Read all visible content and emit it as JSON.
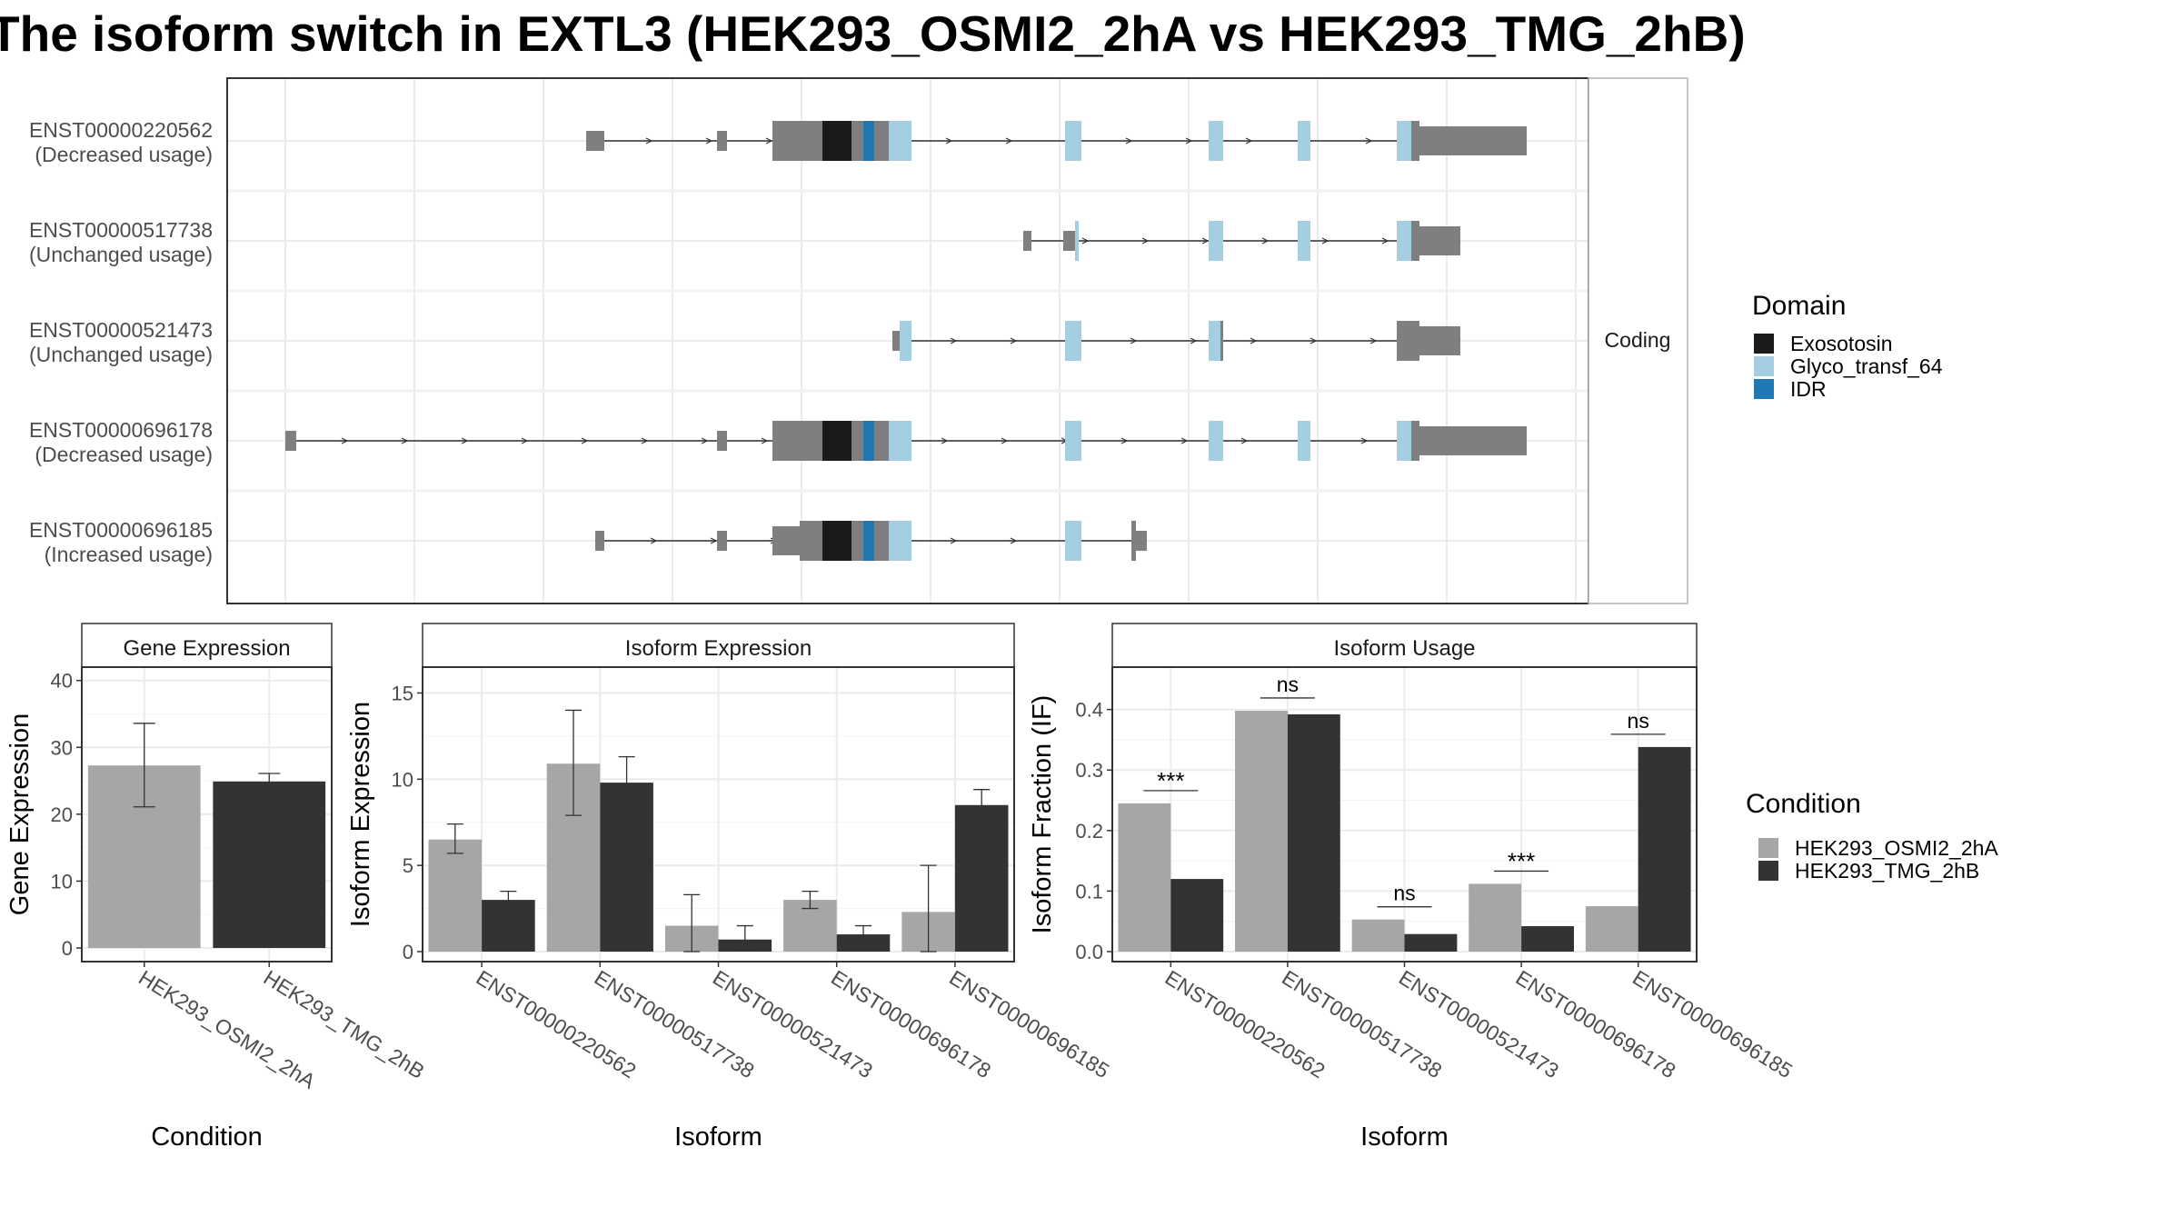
{
  "title": "The isoform switch in EXTL3 (HEK293_OSMI2_2hA vs HEK293_TMG_2hB)",
  "colors": {
    "exosotosin": "#1a1a1a",
    "glyco": "#a6cee3",
    "idr": "#1f78b4",
    "noncoding_gray": "#7f7f7f",
    "cond_a": "#a6a6a6",
    "cond_b": "#333333",
    "grid": "#ebebeb",
    "strip_bg": "#ffffff"
  },
  "structure": {
    "facet_label": "Coding",
    "isoforms": [
      {
        "id": "ENST00000220562",
        "usage": "(Decreased usage)"
      },
      {
        "id": "ENST00000517738",
        "usage": "(Unchanged usage)"
      },
      {
        "id": "ENST00000521473",
        "usage": "(Unchanged usage)"
      },
      {
        "id": "ENST00000696178",
        "usage": "(Decreased usage)"
      },
      {
        "id": "ENST00000696185",
        "usage": "(Increased usage)"
      }
    ],
    "domain_legend_title": "Domain",
    "domains": [
      {
        "name": "Exosotosin",
        "color": "#1a1a1a"
      },
      {
        "name": "Glyco_transf_64",
        "color": "#a6cee3"
      },
      {
        "name": "IDR",
        "color": "#1f78b4"
      }
    ]
  },
  "condition_legend": {
    "title": "Condition",
    "items": [
      {
        "name": "HEK293_OSMI2_2hA",
        "color": "#a6a6a6"
      },
      {
        "name": "HEK293_TMG_2hB",
        "color": "#333333"
      }
    ]
  },
  "chart_data": [
    {
      "type": "bar",
      "title": "Gene Expression",
      "xlabel": "Condition",
      "ylabel": "Gene Expression",
      "categories": [
        "HEK293_OSMI2_2hA",
        "HEK293_TMG_2hB"
      ],
      "values": [
        27.3,
        24.9
      ],
      "err_low": [
        21.1,
        23.5
      ],
      "err_high": [
        33.6,
        26.1
      ],
      "ylim": [
        0,
        42
      ],
      "yticks": [
        0,
        10,
        20,
        30,
        40
      ]
    },
    {
      "type": "bar",
      "title": "Isoform Expression",
      "xlabel": "Isoform",
      "ylabel": "Isoform Expression",
      "categories": [
        "ENST00000220562",
        "ENST00000517738",
        "ENST00000521473",
        "ENST00000696178",
        "ENST00000696185"
      ],
      "series": [
        {
          "name": "HEK293_OSMI2_2hA",
          "values": [
            6.5,
            10.9,
            1.5,
            3.0,
            2.3
          ],
          "err_low": [
            5.7,
            7.9,
            0.0,
            2.5,
            0.0
          ],
          "err_high": [
            7.4,
            14.0,
            3.3,
            3.5,
            5.0
          ]
        },
        {
          "name": "HEK293_TMG_2hB",
          "values": [
            3.0,
            9.8,
            0.7,
            1.0,
            8.5
          ],
          "err_low": [
            2.5,
            8.2,
            0.1,
            0.6,
            7.5
          ],
          "err_high": [
            3.5,
            11.3,
            1.5,
            1.5,
            9.4
          ]
        }
      ],
      "ylim": [
        0,
        16.5
      ],
      "yticks": [
        0,
        5,
        10,
        15
      ]
    },
    {
      "type": "bar",
      "title": "Isoform Usage",
      "xlabel": "Isoform",
      "ylabel": "Isoform Fraction (IF)",
      "categories": [
        "ENST00000220562",
        "ENST00000517738",
        "ENST00000521473",
        "ENST00000696178",
        "ENST00000696185"
      ],
      "series": [
        {
          "name": "HEK293_OSMI2_2hA",
          "values": [
            0.245,
            0.398,
            0.053,
            0.112,
            0.075
          ]
        },
        {
          "name": "HEK293_TMG_2hB",
          "values": [
            0.12,
            0.392,
            0.029,
            0.042,
            0.338
          ]
        }
      ],
      "significance": [
        "***",
        "ns",
        "ns",
        "***",
        "ns"
      ],
      "ylim": [
        0,
        0.47
      ],
      "yticks": [
        "0.0",
        "0.1",
        "0.2",
        "0.3",
        "0.4"
      ]
    }
  ]
}
